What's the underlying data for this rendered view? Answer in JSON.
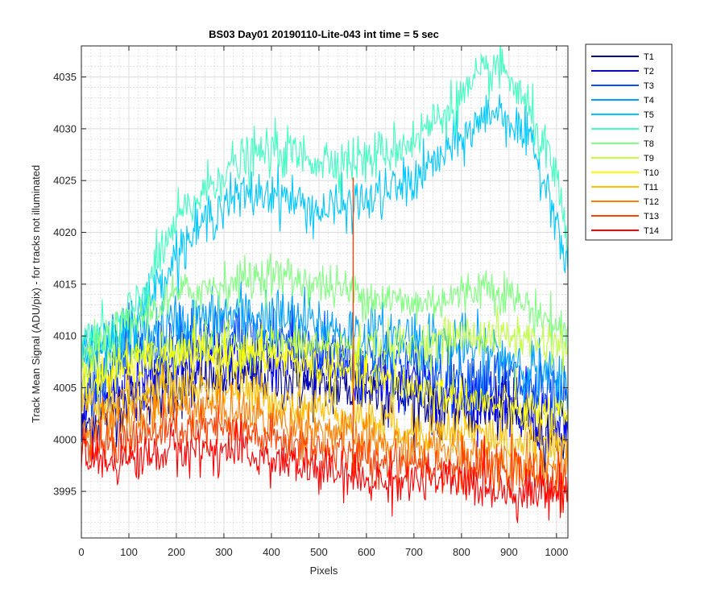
{
  "chart_data": {
    "type": "line",
    "title": "BS03 Day01 20190110-Lite-043 int time = 5 sec",
    "xlabel": "Pixels",
    "ylabel": "Track Mean Signal (ADU/pix) - for tracks not illuminated",
    "xlim": [
      0,
      1024
    ],
    "ylim": [
      3990.5,
      4038
    ],
    "xticks": [
      "0",
      "100",
      "200",
      "300",
      "400",
      "500",
      "600",
      "700",
      "800",
      "900",
      "1000"
    ],
    "yticks": [
      "3995",
      "4000",
      "4005",
      "4010",
      "4015",
      "4020",
      "4025",
      "4030",
      "4035"
    ],
    "grid": true,
    "minor_grid": true,
    "legend_position": "outside-top-right",
    "series": [
      {
        "name": "T1",
        "color": "#00008f",
        "noise": 2.0,
        "x": [
          0,
          100,
          200,
          300,
          400,
          500,
          600,
          700,
          800,
          900,
          1024
        ],
        "y": [
          4001,
          4004,
          4005,
          4006,
          4006,
          4005,
          4005,
          4004,
          4003,
          4003,
          4000
        ]
      },
      {
        "name": "T2",
        "color": "#0000ff",
        "noise": 2.2,
        "x": [
          0,
          100,
          200,
          300,
          400,
          500,
          600,
          700,
          800,
          900,
          1024
        ],
        "y": [
          4003,
          4006,
          4007,
          4008,
          4008,
          4007,
          4006,
          4005,
          4004,
          4004,
          4001
        ]
      },
      {
        "name": "T3",
        "color": "#0050ff",
        "noise": 2.2,
        "x": [
          0,
          100,
          200,
          300,
          400,
          500,
          600,
          700,
          800,
          900,
          1024
        ],
        "y": [
          4005,
          4008,
          4009,
          4010,
          4010,
          4009,
          4008,
          4007,
          4006,
          4006,
          4003
        ]
      },
      {
        "name": "T4",
        "color": "#00a0ff",
        "noise": 2.0,
        "x": [
          0,
          100,
          200,
          300,
          400,
          500,
          600,
          700,
          800,
          900,
          1024
        ],
        "y": [
          4008,
          4010,
          4011,
          4012,
          4012,
          4011,
          4010,
          4010,
          4009,
          4008,
          4005
        ]
      },
      {
        "name": "T5",
        "color": "#00c8ff",
        "noise": 1.6,
        "x": [
          0,
          50,
          100,
          150,
          200,
          300,
          400,
          500,
          600,
          700,
          800,
          870,
          900,
          950,
          1000,
          1024
        ],
        "y": [
          4009,
          4009,
          4011,
          4014,
          4018,
          4023,
          4024,
          4022,
          4023,
          4025,
          4029,
          4032,
          4031,
          4028,
          4022,
          4015
        ]
      },
      {
        "name": "T7",
        "color": "#40ffc0",
        "noise": 1.6,
        "x": [
          0,
          50,
          100,
          150,
          200,
          300,
          400,
          500,
          600,
          700,
          800,
          870,
          900,
          950,
          1000,
          1024
        ],
        "y": [
          4010,
          4010,
          4012,
          4016,
          4021,
          4026,
          4028,
          4027,
          4027,
          4029,
          4033,
          4036,
          4035,
          4031,
          4025,
          4018
        ]
      },
      {
        "name": "T8",
        "color": "#80ff80",
        "noise": 1.4,
        "x": [
          0,
          100,
          200,
          300,
          400,
          500,
          600,
          700,
          800,
          850,
          900,
          1000,
          1024
        ],
        "y": [
          4008,
          4011,
          4014,
          4015,
          4016,
          4015,
          4014,
          4013,
          4014,
          4015,
          4014,
          4011,
          4010
        ]
      },
      {
        "name": "T9",
        "color": "#c0ff40",
        "noise": 1.4,
        "x": [
          0,
          100,
          200,
          300,
          400,
          500,
          600,
          700,
          800,
          900,
          1024
        ],
        "y": [
          4007,
          4008,
          4009,
          4009,
          4009,
          4009,
          4009,
          4009,
          4010,
          4010,
          4009
        ]
      },
      {
        "name": "T10",
        "color": "#ffff00",
        "noise": 1.5,
        "x": [
          0,
          100,
          200,
          300,
          400,
          500,
          600,
          700,
          800,
          900,
          1024
        ],
        "y": [
          4005,
          4007,
          4008,
          4008,
          4008,
          4007,
          4006,
          4005,
          4004,
          4003,
          4002
        ]
      },
      {
        "name": "T11",
        "color": "#ffc000",
        "noise": 1.5,
        "x": [
          0,
          100,
          200,
          300,
          400,
          500,
          600,
          700,
          800,
          900,
          1024
        ],
        "y": [
          4003,
          4004,
          4005,
          4005,
          4004,
          4003,
          4002,
          4001,
          4001,
          4000,
          3999
        ]
      },
      {
        "name": "T12",
        "color": "#ff8000",
        "noise": 1.5,
        "x": [
          0,
          100,
          200,
          300,
          400,
          500,
          600,
          700,
          800,
          900,
          1024
        ],
        "y": [
          4001,
          4002,
          4003,
          4003,
          4002,
          4001,
          4000,
          3999,
          3999,
          3998,
          3997
        ]
      },
      {
        "name": "T13",
        "color": "#ff4000",
        "noise": 1.5,
        "x": [
          0,
          100,
          200,
          300,
          400,
          500,
          600,
          700,
          800,
          900,
          1024
        ],
        "y": [
          3999,
          4000,
          4001,
          4001,
          4000,
          3999,
          3998,
          3998,
          3997,
          3997,
          3996
        ]
      },
      {
        "name": "T14",
        "color": "#ff0000",
        "noise": 1.5,
        "x": [
          0,
          100,
          200,
          300,
          400,
          500,
          600,
          700,
          800,
          900,
          1024
        ],
        "y": [
          3998,
          3998,
          3999,
          3999,
          3998,
          3997,
          3996,
          3996,
          3996,
          3995,
          3995
        ]
      }
    ],
    "annotations": [
      {
        "series": "T13",
        "type": "spike",
        "x": 572,
        "y": [
          3997,
          4025.3
        ]
      }
    ]
  }
}
